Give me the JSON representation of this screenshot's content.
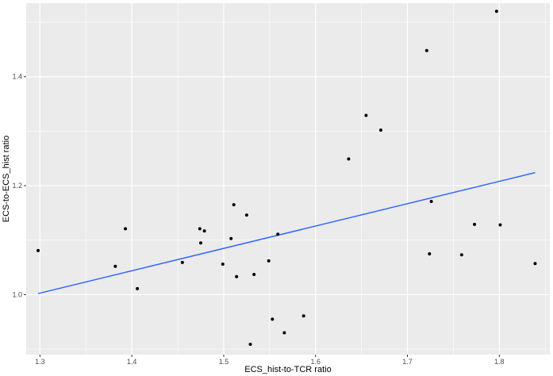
{
  "chart_data": {
    "type": "scatter",
    "xlabel": "ECS_hist-to-TCR ratio",
    "ylabel": "ECS-to-ECS_hist ratio",
    "xlim": [
      1.285,
      1.855
    ],
    "ylim": [
      0.89,
      1.535
    ],
    "x_ticks": [
      1.3,
      1.4,
      1.5,
      1.6,
      1.7,
      1.8
    ],
    "y_ticks": [
      1.0,
      1.2,
      1.4
    ],
    "x_tick_labels": [
      "1.3",
      "1.4",
      "1.5",
      "1.6",
      "1.7",
      "1.8"
    ],
    "y_tick_labels": [
      "1.0",
      "1.2",
      "1.4"
    ],
    "grid": true,
    "panel_color": "#ebebeb",
    "point_color": "#000000",
    "line_color": "#3366ff",
    "points": [
      [
        1.298,
        1.081
      ],
      [
        1.382,
        1.052
      ],
      [
        1.393,
        1.121
      ],
      [
        1.406,
        1.011
      ],
      [
        1.455,
        1.059
      ],
      [
        1.474,
        1.121
      ],
      [
        1.475,
        1.095
      ],
      [
        1.479,
        1.117
      ],
      [
        1.499,
        1.056
      ],
      [
        1.508,
        1.103
      ],
      [
        1.511,
        1.165
      ],
      [
        1.514,
        1.033
      ],
      [
        1.525,
        1.146
      ],
      [
        1.529,
        0.909
      ],
      [
        1.533,
        1.037
      ],
      [
        1.549,
        1.062
      ],
      [
        1.553,
        0.955
      ],
      [
        1.559,
        1.111
      ],
      [
        1.566,
        0.93
      ],
      [
        1.587,
        0.961
      ],
      [
        1.636,
        1.249
      ],
      [
        1.655,
        1.329
      ],
      [
        1.671,
        1.302
      ],
      [
        1.721,
        1.448
      ],
      [
        1.724,
        1.075
      ],
      [
        1.726,
        1.171
      ],
      [
        1.759,
        1.073
      ],
      [
        1.773,
        1.129
      ],
      [
        1.797,
        1.52
      ],
      [
        1.801,
        1.128
      ],
      [
        1.839,
        1.057
      ]
    ],
    "fit_line": {
      "x": [
        1.298,
        1.839
      ],
      "y": [
        1.002,
        1.224
      ]
    }
  }
}
